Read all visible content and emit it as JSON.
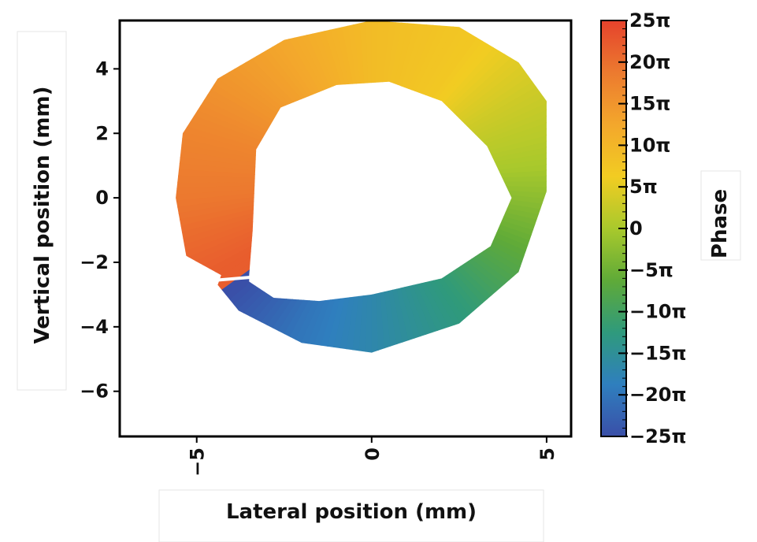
{
  "chart_data": {
    "type": "heatmap",
    "title": "",
    "xlabel": "Lateral position (mm)",
    "ylabel": "Vertical position (mm)",
    "xlim": [
      -7.2,
      5.7
    ],
    "ylim": [
      -7.4,
      5.5
    ],
    "x_ticks": [
      {
        "value": -5,
        "label": "−5"
      },
      {
        "value": 0,
        "label": "0"
      },
      {
        "value": 5,
        "label": "5"
      }
    ],
    "y_ticks": [
      {
        "value": 4,
        "label": "4"
      },
      {
        "value": 2,
        "label": "2"
      },
      {
        "value": 0,
        "label": "0"
      },
      {
        "value": -2,
        "label": "−2"
      },
      {
        "value": -4,
        "label": "−4"
      },
      {
        "value": -6,
        "label": "−6"
      }
    ],
    "colorbar": {
      "label": "Phase",
      "range": [
        -25,
        25
      ],
      "unit": "π",
      "ticks": [
        {
          "value": 25,
          "label": "25π"
        },
        {
          "value": 20,
          "label": "20π"
        },
        {
          "value": 15,
          "label": "15π"
        },
        {
          "value": 10,
          "label": "10π"
        },
        {
          "value": 5,
          "label": "5π"
        },
        {
          "value": 0,
          "label": "0"
        },
        {
          "value": -5,
          "label": "−5π"
        },
        {
          "value": -10,
          "label": "−10π"
        },
        {
          "value": -15,
          "label": "−15π"
        },
        {
          "value": -20,
          "label": "−20π"
        },
        {
          "value": -25,
          "label": "−25π"
        }
      ],
      "colormap": [
        "#3a4fa8",
        "#2f7fbe",
        "#2f9a7c",
        "#5faa38",
        "#a9c92c",
        "#f2cc22",
        "#f3a72c",
        "#ec7a2f",
        "#e5422c"
      ]
    },
    "ring": {
      "description_values": "phase ramps around the annulus from about -25π at lower-left, through 0 at right, to about +22π at left",
      "outer_boundary": [
        [
          -4.3,
          -2.4
        ],
        [
          -5.3,
          -1.8
        ],
        [
          -5.6,
          0.0
        ],
        [
          -5.4,
          2.0
        ],
        [
          -4.4,
          3.7
        ],
        [
          -2.5,
          4.9
        ],
        [
          0.0,
          5.5
        ],
        [
          2.5,
          5.3
        ],
        [
          4.2,
          4.2
        ],
        [
          5.0,
          3.0
        ],
        [
          5.0,
          0.2
        ],
        [
          4.2,
          -2.3
        ],
        [
          2.5,
          -3.9
        ],
        [
          0.0,
          -4.8
        ],
        [
          -2.0,
          -4.5
        ],
        [
          -3.8,
          -3.5
        ],
        [
          -4.4,
          -2.7
        ]
      ],
      "inner_boundary": [
        [
          -3.5,
          -2.4
        ],
        [
          -3.4,
          -1.0
        ],
        [
          -3.3,
          1.5
        ],
        [
          -2.6,
          2.8
        ],
        [
          -1.0,
          3.5
        ],
        [
          0.5,
          3.6
        ],
        [
          2.0,
          3.0
        ],
        [
          3.3,
          1.6
        ],
        [
          4.0,
          0.0
        ],
        [
          3.4,
          -1.5
        ],
        [
          2.0,
          -2.5
        ],
        [
          0.0,
          -3.0
        ],
        [
          -1.5,
          -3.2
        ],
        [
          -2.8,
          -3.1
        ],
        [
          -3.5,
          -2.6
        ]
      ],
      "phase_samples": [
        {
          "x": -4.1,
          "y": -3.0,
          "phase": -25
        },
        {
          "x": -2.0,
          "y": -4.0,
          "phase": -20
        },
        {
          "x": 0.0,
          "y": -4.2,
          "phase": -17
        },
        {
          "x": 2.5,
          "y": -3.0,
          "phase": -12
        },
        {
          "x": 4.3,
          "y": -1.0,
          "phase": -5
        },
        {
          "x": 4.6,
          "y": 1.0,
          "phase": 0
        },
        {
          "x": 4.2,
          "y": 3.0,
          "phase": 3
        },
        {
          "x": 2.5,
          "y": 4.3,
          "phase": 7
        },
        {
          "x": 0.0,
          "y": 4.5,
          "phase": 9
        },
        {
          "x": -2.5,
          "y": 4.0,
          "phase": 13
        },
        {
          "x": -4.4,
          "y": 2.0,
          "phase": 17
        },
        {
          "x": -4.6,
          "y": 0.0,
          "phase": 19
        },
        {
          "x": -4.3,
          "y": -2.2,
          "phase": 22
        }
      ]
    }
  }
}
